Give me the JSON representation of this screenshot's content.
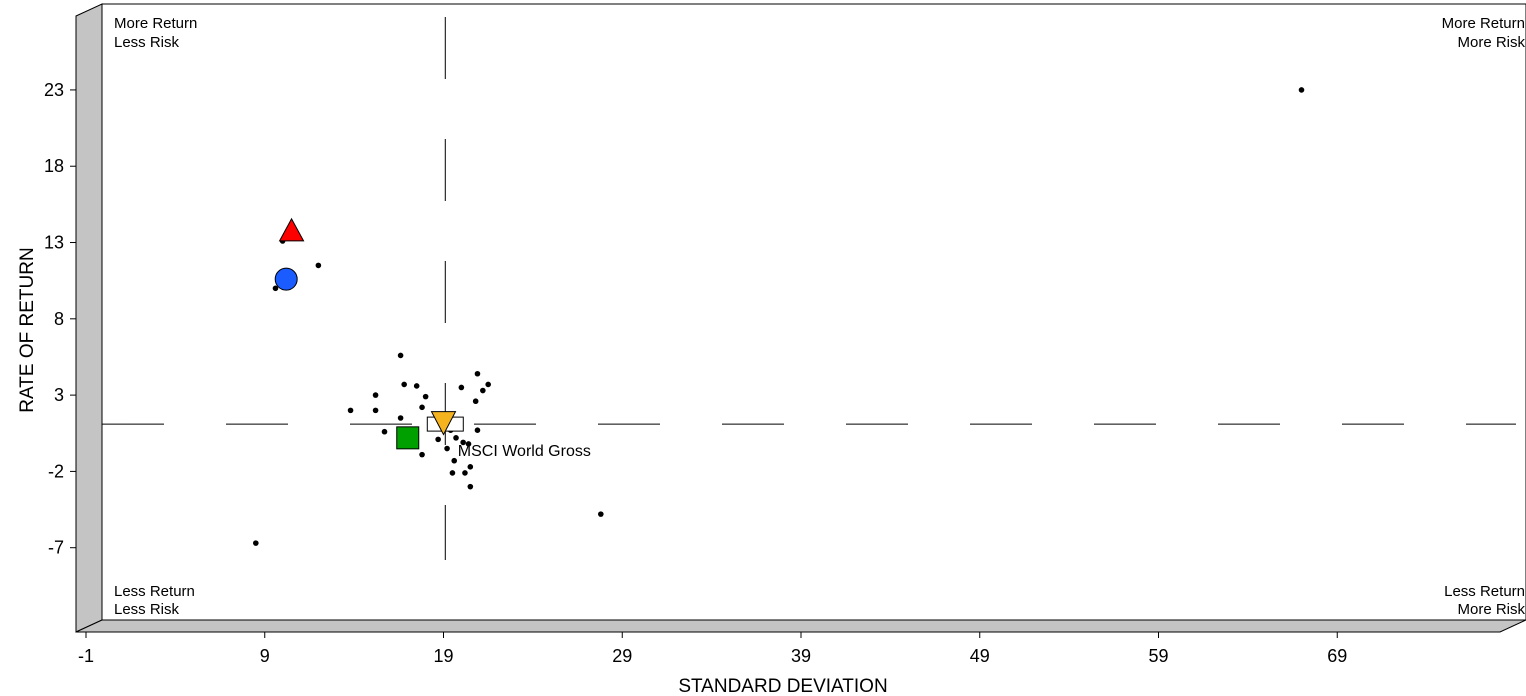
{
  "chart_data": {
    "type": "scatter",
    "xlabel": "STANDARD DEVIATION",
    "ylabel": "RATE OF RETURN",
    "xlim": [
      -1,
      79
    ],
    "ylim": [
      -12,
      28.5
    ],
    "x_ticks": [
      "-1",
      "9",
      "19",
      "29",
      "39",
      "49",
      "59",
      "69"
    ],
    "x_tick_values": [
      -1,
      9,
      19,
      29,
      39,
      49,
      59,
      69
    ],
    "y_ticks": [
      "23",
      "18",
      "13",
      "8",
      "3",
      "-2",
      "-7"
    ],
    "y_tick_values": [
      23,
      18,
      13,
      8,
      3,
      -2,
      -7
    ],
    "quadrants": {
      "top_left": [
        "More Return",
        "Less Risk"
      ],
      "top_right": [
        "More Return",
        "More Risk"
      ],
      "bottom_left": [
        "Less Return",
        "Less Risk"
      ],
      "bottom_right": [
        "Less Return",
        "More Risk"
      ]
    },
    "crosshair": {
      "x": 19.1,
      "y": 1.1
    },
    "annotation": {
      "text": "MSCI World Gross",
      "x": 19.8,
      "y": -0.6
    },
    "highlights": [
      {
        "shape": "triangle-up",
        "color": "#ff0000",
        "x": 10.5,
        "y": 13.7
      },
      {
        "shape": "circle",
        "color": "#1a5cff",
        "x": 10.2,
        "y": 10.6
      },
      {
        "shape": "square",
        "color": "#00a000",
        "x": 17.0,
        "y": 0.2
      },
      {
        "shape": "triangle-down",
        "color": "#f5b41e",
        "x": 19.0,
        "y": 1.2
      },
      {
        "shape": "rectangle",
        "color": "#ffffff",
        "x": 19.1,
        "y": 1.1
      }
    ],
    "points": [
      {
        "x": 67.0,
        "y": 23.0
      },
      {
        "x": 10.0,
        "y": 13.1
      },
      {
        "x": 12.0,
        "y": 11.5
      },
      {
        "x": 9.6,
        "y": 10.0
      },
      {
        "x": 8.5,
        "y": -6.7
      },
      {
        "x": 16.6,
        "y": 5.6
      },
      {
        "x": 20.9,
        "y": 4.4
      },
      {
        "x": 16.8,
        "y": 3.7
      },
      {
        "x": 17.5,
        "y": 3.6
      },
      {
        "x": 20.0,
        "y": 3.5
      },
      {
        "x": 21.5,
        "y": 3.7
      },
      {
        "x": 21.2,
        "y": 3.3
      },
      {
        "x": 15.2,
        "y": 3.0
      },
      {
        "x": 18.0,
        "y": 2.9
      },
      {
        "x": 20.8,
        "y": 2.6
      },
      {
        "x": 13.8,
        "y": 2.0
      },
      {
        "x": 15.2,
        "y": 2.0
      },
      {
        "x": 17.8,
        "y": 2.2
      },
      {
        "x": 16.6,
        "y": 1.5
      },
      {
        "x": 15.7,
        "y": 0.6
      },
      {
        "x": 18.7,
        "y": 0.1
      },
      {
        "x": 19.4,
        "y": 0.7
      },
      {
        "x": 20.9,
        "y": 0.7
      },
      {
        "x": 20.1,
        "y": -0.1
      },
      {
        "x": 19.7,
        "y": 0.2
      },
      {
        "x": 19.2,
        "y": -0.5
      },
      {
        "x": 20.4,
        "y": -0.2
      },
      {
        "x": 17.8,
        "y": -0.9
      },
      {
        "x": 20.5,
        "y": -1.7
      },
      {
        "x": 19.6,
        "y": -1.3
      },
      {
        "x": 20.2,
        "y": -2.1
      },
      {
        "x": 19.5,
        "y": -2.1
      },
      {
        "x": 20.5,
        "y": -3.0
      },
      {
        "x": 27.8,
        "y": -4.8
      }
    ]
  }
}
